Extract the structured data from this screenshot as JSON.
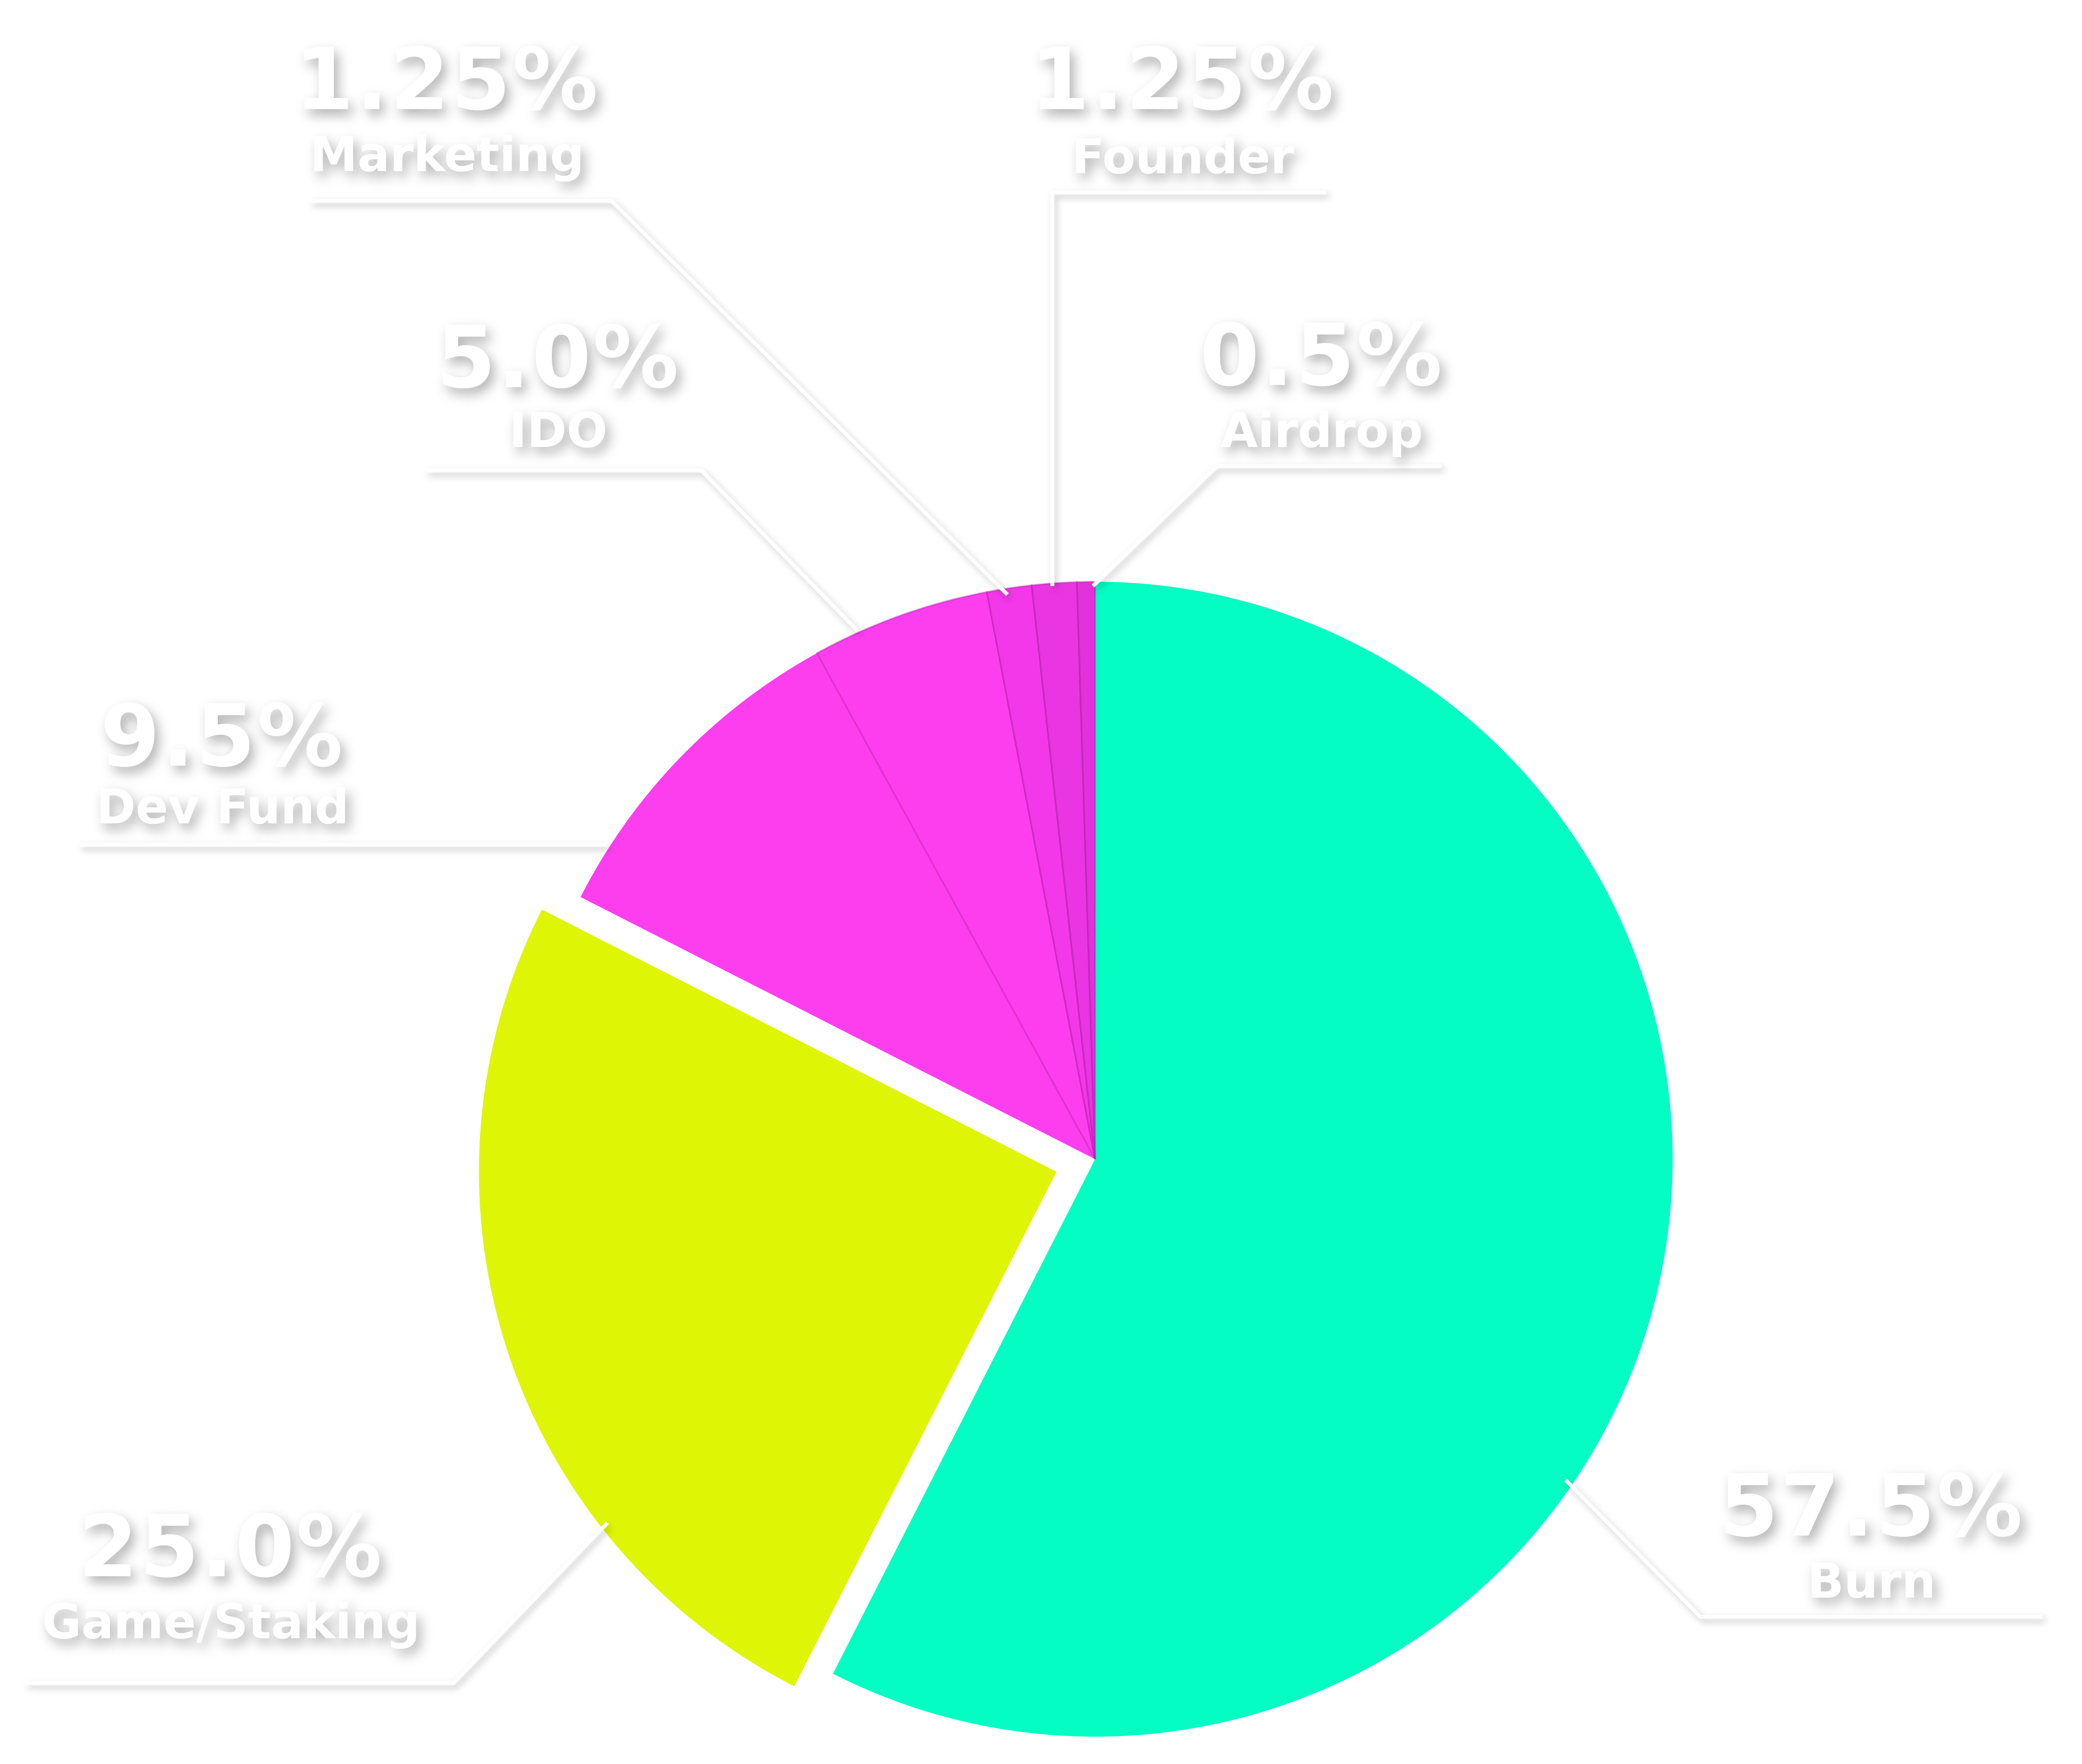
{
  "chart_data": {
    "type": "pie",
    "start_angle_deg": 0,
    "direction": "clockwise",
    "slices": [
      {
        "id": "burn",
        "name": "Burn",
        "value": 57.5,
        "label": "57.5%",
        "color": "#03FDC3",
        "exploded": false
      },
      {
        "id": "game",
        "name": "Game/Staking",
        "value": 25.0,
        "label": "25.0%",
        "color": "#DEF505",
        "exploded": true
      },
      {
        "id": "dev",
        "name": "Dev Fund",
        "value": 9.5,
        "label": "9.5%",
        "color": "#FD3EEF",
        "exploded": false
      },
      {
        "id": "ido",
        "name": "IDO",
        "value": 5.0,
        "label": "5.0%",
        "color": "#FD3EEF",
        "exploded": false
      },
      {
        "id": "marketing",
        "name": "Marketing",
        "value": 1.25,
        "label": "1.25%",
        "color": "#F238E8",
        "exploded": false
      },
      {
        "id": "founder",
        "name": "Founder",
        "value": 1.25,
        "label": "1.25%",
        "color": "#EA35E2",
        "exploded": false
      },
      {
        "id": "airdrop",
        "name": "Airdrop",
        "value": 0.5,
        "label": "0.5%",
        "color": "#E232DB",
        "exploded": false
      }
    ],
    "title": "",
    "legend": "none",
    "label_color": "#FFFFFF",
    "background": "#FFFFFF"
  }
}
